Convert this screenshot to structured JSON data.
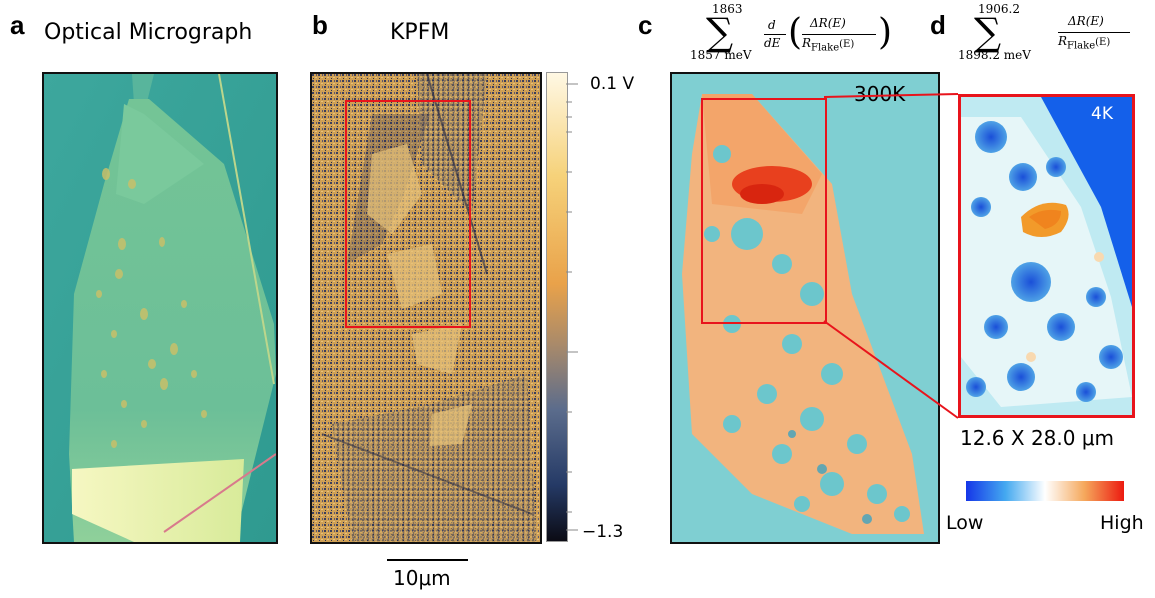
{
  "panels": {
    "a": {
      "letter": "a",
      "title": "Optical Micrograph"
    },
    "b": {
      "letter": "b",
      "title": "KPFM",
      "colorbar": {
        "top_label": "0.1 V",
        "bottom_label": "−1.3"
      }
    },
    "c": {
      "letter": "c",
      "label": "300K",
      "formula": {
        "upper": "1863",
        "lower": "1857 meV",
        "numerator": "ΔR(E)",
        "denominator_base": "R",
        "denominator_sub": "Flake",
        "denominator_arg": "(E)",
        "derivative_top": "d",
        "derivative_bottom": "dE"
      }
    },
    "d": {
      "letter": "d",
      "label": "4K",
      "formula": {
        "upper": "1906.2",
        "lower": "1898.2 meV",
        "numerator": "ΔR(E)",
        "denominator_base": "R",
        "denominator_sub": "Flake",
        "denominator_arg": "(E)"
      },
      "dimensions": "12.6 X 28.0 μm",
      "colorbar": {
        "low": "Low",
        "high": "High"
      }
    }
  },
  "scalebar": {
    "label": "10μm"
  },
  "colors": {
    "highlight_box": "#e8141c",
    "optical_bg": "#3aa89e",
    "kpfm_gold": "#e8b24a",
    "map_cyan": "#7fcfd2"
  }
}
